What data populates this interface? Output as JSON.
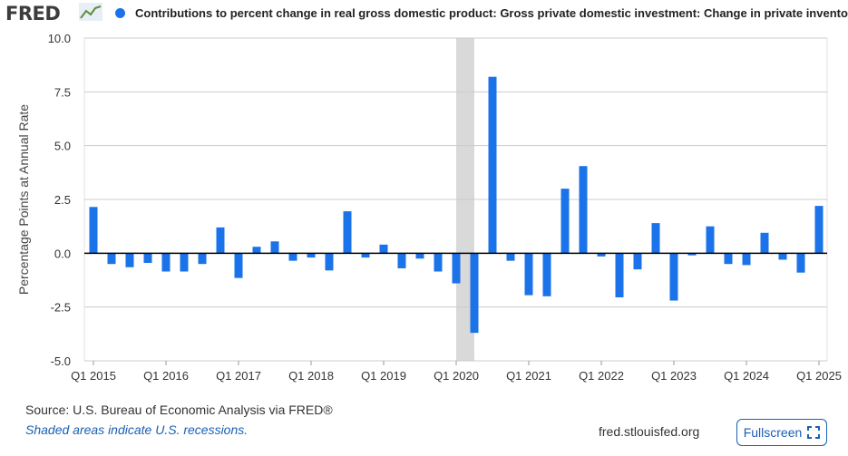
{
  "header": {
    "logo": "FRED",
    "legend_label": "Contributions to percent change in real gross domestic product: Gross private domestic investment: Change in private inventories"
  },
  "footer": {
    "source": "Source: U.S. Bureau of Economic Analysis via FRED®",
    "recession_note": "Shaded areas indicate U.S. recessions.",
    "site": "fred.stlouisfed.org",
    "fullscreen_label": "Fullscreen"
  },
  "colors": {
    "bar": "#1a73e8",
    "recession": "#d9d9d9",
    "grid": "#cccccc"
  },
  "chart_data": {
    "type": "bar",
    "ylabel": "Percentage Points at Annual Rate",
    "ylim": [
      -5.0,
      10.0
    ],
    "yticks": [
      10.0,
      7.5,
      5.0,
      2.5,
      0.0,
      -2.5,
      -5.0
    ],
    "ytick_labels": [
      "10.0",
      "7.5",
      "5.0",
      "2.5",
      "0.0",
      "-2.5",
      "-5.0"
    ],
    "xtick_labels": [
      "Q1 2015",
      "Q1 2016",
      "Q1 2017",
      "Q1 2018",
      "Q1 2019",
      "Q1 2020",
      "Q1 2021",
      "Q1 2022",
      "Q1 2023",
      "Q1 2024",
      "Q1 2025"
    ],
    "recession": {
      "start": "2020 Q1",
      "end": "2020 Q2"
    },
    "grid": true,
    "series": [
      {
        "categories": [
          "2015 Q1",
          "2015 Q2",
          "2015 Q3",
          "2015 Q4",
          "2016 Q1",
          "2016 Q2",
          "2016 Q3",
          "2016 Q4",
          "2017 Q1",
          "2017 Q2",
          "2017 Q3",
          "2017 Q4",
          "2018 Q1",
          "2018 Q2",
          "2018 Q3",
          "2018 Q4",
          "2019 Q1",
          "2019 Q2",
          "2019 Q3",
          "2019 Q4",
          "2020 Q1",
          "2020 Q2",
          "2020 Q3",
          "2020 Q4",
          "2021 Q1",
          "2021 Q2",
          "2021 Q3",
          "2021 Q4",
          "2022 Q1",
          "2022 Q2",
          "2022 Q3",
          "2022 Q4",
          "2023 Q1",
          "2023 Q2",
          "2023 Q3",
          "2023 Q4",
          "2024 Q1",
          "2024 Q2",
          "2024 Q3",
          "2024 Q4",
          "2025 Q1"
        ],
        "values": [
          2.15,
          -0.5,
          -0.65,
          -0.45,
          -0.85,
          -0.85,
          -0.5,
          1.2,
          -1.15,
          0.3,
          0.55,
          -0.35,
          -0.2,
          -0.8,
          1.95,
          -0.2,
          0.4,
          -0.7,
          -0.25,
          -0.85,
          -1.4,
          -3.7,
          8.2,
          -0.35,
          -1.95,
          -2.0,
          3.0,
          4.05,
          -0.15,
          -2.05,
          -0.75,
          1.4,
          -2.2,
          -0.1,
          1.25,
          -0.5,
          -0.55,
          0.95,
          -0.3,
          -0.9,
          2.2
        ]
      }
    ]
  }
}
